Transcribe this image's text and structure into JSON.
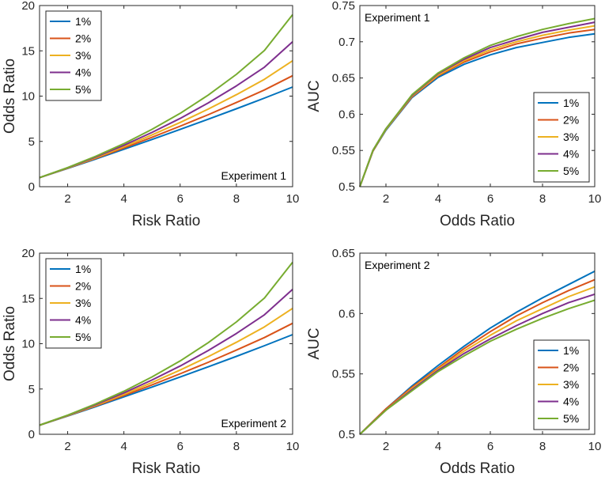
{
  "series_colors": [
    "#0072BD",
    "#D95319",
    "#EDB120",
    "#7E2F8E",
    "#77AC30"
  ],
  "chart_data": [
    {
      "type": "line",
      "xlabel": "Risk Ratio",
      "ylabel": "Odds Ratio",
      "annotation": "Experiment 1",
      "xlim": [
        1,
        10
      ],
      "ylim": [
        0,
        20
      ],
      "xticks": [
        2,
        4,
        6,
        8,
        10
      ],
      "xtick_labels": [
        "2",
        "4",
        "6",
        "8",
        "10"
      ],
      "yticks": [
        0,
        5,
        10,
        15,
        20
      ],
      "ytick_labels": [
        "0",
        "5",
        "10",
        "15",
        "20"
      ],
      "legend": "top-left",
      "x": [
        1,
        2,
        3,
        4,
        5,
        6,
        7,
        8,
        9,
        10
      ],
      "series": [
        {
          "name": "1%",
          "values": [
            1.0,
            2.02,
            3.06,
            4.13,
            5.21,
            6.32,
            7.45,
            8.6,
            9.78,
            11.0
          ]
        },
        {
          "name": "2%",
          "values": [
            1.0,
            2.04,
            3.13,
            4.27,
            5.45,
            6.68,
            7.95,
            9.29,
            10.68,
            12.25
          ]
        },
        {
          "name": "3%",
          "values": [
            1.0,
            2.06,
            3.2,
            4.41,
            5.71,
            7.09,
            8.57,
            10.16,
            11.86,
            13.9
          ]
        },
        {
          "name": "4%",
          "values": [
            1.0,
            2.09,
            3.28,
            4.57,
            5.99,
            7.54,
            9.25,
            11.13,
            13.2,
            16.0
          ]
        },
        {
          "name": "5%",
          "values": [
            1.0,
            2.11,
            3.36,
            4.75,
            6.33,
            8.1,
            10.11,
            12.4,
            15.05,
            19.0
          ]
        }
      ]
    },
    {
      "type": "line",
      "xlabel": "Odds Ratio",
      "ylabel": "AUC",
      "annotation": "Experiment 1",
      "xlim": [
        1,
        10
      ],
      "ylim": [
        0.5,
        0.75
      ],
      "xticks": [
        2,
        4,
        6,
        8,
        10
      ],
      "xtick_labels": [
        "2",
        "4",
        "6",
        "8",
        "10"
      ],
      "yticks": [
        0.5,
        0.55,
        0.6,
        0.65,
        0.7,
        0.75
      ],
      "ytick_labels": [
        "0.5",
        "0.55",
        "0.6",
        "0.65",
        "0.7",
        "0.75"
      ],
      "legend": "bottom-right",
      "x": [
        1,
        1.5,
        2,
        3,
        4,
        5,
        6,
        7,
        8,
        9,
        10
      ],
      "series": [
        {
          "name": "1%",
          "values": [
            0.5,
            0.549,
            0.578,
            0.623,
            0.651,
            0.669,
            0.682,
            0.692,
            0.699,
            0.706,
            0.711
          ]
        },
        {
          "name": "2%",
          "values": [
            0.5,
            0.549,
            0.579,
            0.624,
            0.653,
            0.672,
            0.686,
            0.697,
            0.705,
            0.712,
            0.717
          ]
        },
        {
          "name": "3%",
          "values": [
            0.5,
            0.55,
            0.579,
            0.625,
            0.654,
            0.674,
            0.689,
            0.7,
            0.709,
            0.716,
            0.722
          ]
        },
        {
          "name": "4%",
          "values": [
            0.5,
            0.55,
            0.58,
            0.626,
            0.656,
            0.676,
            0.692,
            0.703,
            0.713,
            0.72,
            0.727
          ]
        },
        {
          "name": "5%",
          "values": [
            0.5,
            0.55,
            0.58,
            0.627,
            0.657,
            0.678,
            0.695,
            0.707,
            0.717,
            0.725,
            0.732
          ]
        }
      ]
    },
    {
      "type": "line",
      "xlabel": "Risk Ratio",
      "ylabel": "Odds Ratio",
      "annotation": "Experiment 2",
      "xlim": [
        1,
        10
      ],
      "ylim": [
        0,
        20
      ],
      "xticks": [
        2,
        4,
        6,
        8,
        10
      ],
      "xtick_labels": [
        "2",
        "4",
        "6",
        "8",
        "10"
      ],
      "yticks": [
        0,
        5,
        10,
        15,
        20
      ],
      "ytick_labels": [
        "0",
        "5",
        "10",
        "15",
        "20"
      ],
      "legend": "top-left",
      "x": [
        1,
        2,
        3,
        4,
        5,
        6,
        7,
        8,
        9,
        10
      ],
      "series": [
        {
          "name": "1%",
          "values": [
            1.0,
            2.02,
            3.06,
            4.13,
            5.21,
            6.32,
            7.45,
            8.6,
            9.78,
            11.0
          ]
        },
        {
          "name": "2%",
          "values": [
            1.0,
            2.04,
            3.13,
            4.27,
            5.45,
            6.68,
            7.95,
            9.29,
            10.68,
            12.25
          ]
        },
        {
          "name": "3%",
          "values": [
            1.0,
            2.06,
            3.2,
            4.41,
            5.71,
            7.09,
            8.57,
            10.16,
            11.86,
            13.9
          ]
        },
        {
          "name": "4%",
          "values": [
            1.0,
            2.09,
            3.28,
            4.57,
            5.99,
            7.54,
            9.25,
            11.13,
            13.2,
            16.0
          ]
        },
        {
          "name": "5%",
          "values": [
            1.0,
            2.11,
            3.36,
            4.75,
            6.33,
            8.1,
            10.11,
            12.4,
            15.05,
            19.0
          ]
        }
      ]
    },
    {
      "type": "line",
      "xlabel": "Odds Ratio",
      "ylabel": "AUC",
      "annotation": "Experiment 2",
      "xlim": [
        1,
        10
      ],
      "ylim": [
        0.5,
        0.65
      ],
      "xticks": [
        2,
        4,
        6,
        8,
        10
      ],
      "xtick_labels": [
        "2",
        "4",
        "6",
        "8",
        "10"
      ],
      "yticks": [
        0.5,
        0.55,
        0.6,
        0.65
      ],
      "ytick_labels": [
        "0.5",
        "0.55",
        "0.6",
        "0.65"
      ],
      "legend": "bottom-right",
      "x": [
        1,
        2,
        3,
        4,
        5,
        6,
        7,
        8,
        9,
        10
      ],
      "series": [
        {
          "name": "1%",
          "values": [
            0.5,
            0.521,
            0.54,
            0.557,
            0.573,
            0.588,
            0.601,
            0.613,
            0.624,
            0.635
          ]
        },
        {
          "name": "2%",
          "values": [
            0.5,
            0.521,
            0.539,
            0.555,
            0.571,
            0.585,
            0.598,
            0.609,
            0.619,
            0.628
          ]
        },
        {
          "name": "3%",
          "values": [
            0.5,
            0.52,
            0.538,
            0.554,
            0.569,
            0.582,
            0.594,
            0.604,
            0.614,
            0.622
          ]
        },
        {
          "name": "4%",
          "values": [
            0.5,
            0.52,
            0.537,
            0.553,
            0.567,
            0.579,
            0.59,
            0.6,
            0.609,
            0.616
          ]
        },
        {
          "name": "5%",
          "values": [
            0.5,
            0.52,
            0.536,
            0.552,
            0.565,
            0.577,
            0.587,
            0.596,
            0.604,
            0.611
          ]
        }
      ]
    }
  ]
}
